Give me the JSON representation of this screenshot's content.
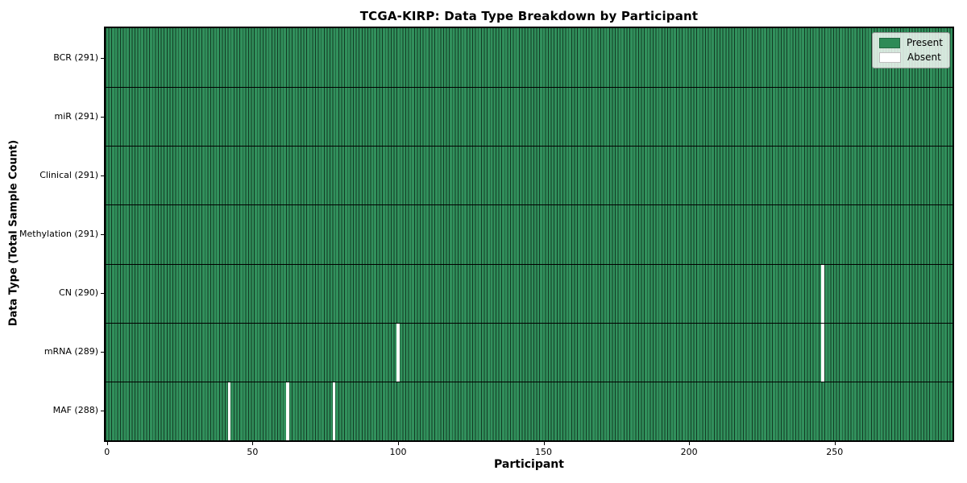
{
  "chart_data": {
    "type": "heatmap",
    "title": "TCGA-KIRP: Data Type Breakdown by Participant",
    "xlabel": "Participant",
    "ylabel": "Data Type (Total Sample Count)",
    "n_participants": 291,
    "x_ticks": [
      0,
      50,
      100,
      150,
      200,
      250
    ],
    "rows": [
      {
        "label": "BCR (291)",
        "data_type": "BCR",
        "present_count": 291,
        "absent_participants": []
      },
      {
        "label": "miR (291)",
        "data_type": "miR",
        "present_count": 291,
        "absent_participants": []
      },
      {
        "label": "Clinical (291)",
        "data_type": "Clinical",
        "present_count": 291,
        "absent_participants": []
      },
      {
        "label": "Methylation (291)",
        "data_type": "Methylation",
        "present_count": 291,
        "absent_participants": []
      },
      {
        "label": "CN (290)",
        "data_type": "CN",
        "present_count": 290,
        "absent_participants": [
          246
        ]
      },
      {
        "label": "mRNA (289)",
        "data_type": "mRNA",
        "present_count": 289,
        "absent_participants": [
          100,
          246
        ]
      },
      {
        "label": "MAF (288)",
        "data_type": "MAF",
        "present_count": 288,
        "absent_participants": [
          42,
          62,
          78
        ]
      }
    ],
    "legend": [
      {
        "label": "Present",
        "color": "#2e8b57"
      },
      {
        "label": "Absent",
        "color": "#ffffff"
      }
    ],
    "colors": {
      "present_fill": "#31905c",
      "cell_edge": "#123b24",
      "absent": "#ffffff",
      "row_divider": "#000000",
      "spine": "#000000"
    },
    "legend_position": "upper right",
    "grid": "cell-borders"
  }
}
